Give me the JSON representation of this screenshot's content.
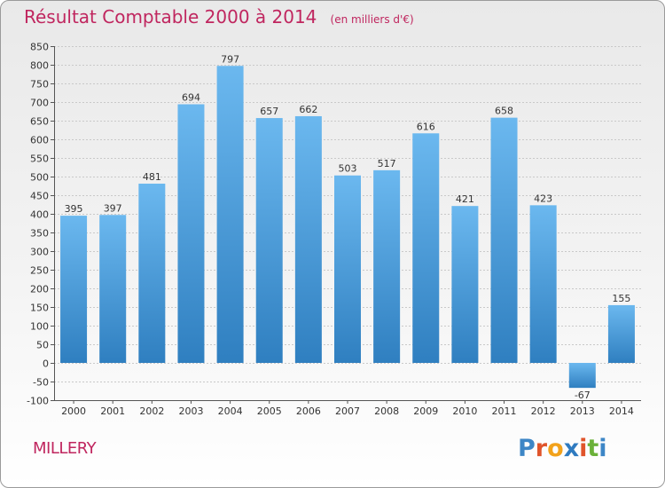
{
  "header": {
    "title": "Résultat Comptable 2000 à 2014",
    "subtitle": "(en milliers d'€)"
  },
  "footer": {
    "commune": "MILLERY",
    "logo_letters": [
      "P",
      "r",
      "o",
      "x",
      "i",
      "t",
      "i"
    ],
    "logo_colors": [
      "#3d86c6",
      "#e0542b",
      "#f2a21b",
      "#2f7bc0",
      "#e0542b",
      "#6bb139",
      "#3d86c6"
    ],
    "logo_text": "Proxiti"
  },
  "colors": {
    "bar_top": "#6bb8ef",
    "bar_bottom": "#2f7fc0",
    "grid": "#c9c9c9",
    "title": "#c0265f"
  },
  "chart_data": {
    "type": "bar",
    "categories": [
      "2000",
      "2001",
      "2002",
      "2003",
      "2004",
      "2005",
      "2006",
      "2007",
      "2008",
      "2009",
      "2010",
      "2011",
      "2012",
      "2013",
      "2014"
    ],
    "values": [
      395,
      397,
      481,
      694,
      797,
      657,
      662,
      503,
      517,
      616,
      421,
      658,
      423,
      -67,
      155
    ],
    "data_labels": [
      "395",
      "397",
      "481",
      "694",
      "797",
      "657",
      "662",
      "503",
      "517",
      "616",
      "421",
      "658",
      "423",
      "-67",
      "155"
    ],
    "yticks": [
      "-100",
      "-50",
      "0",
      "50",
      "100",
      "150",
      "200",
      "250",
      "300",
      "350",
      "400",
      "450",
      "500",
      "550",
      "600",
      "650",
      "700",
      "750",
      "800",
      "850"
    ],
    "ylim": [
      -100,
      850
    ],
    "grid": true,
    "title": "Résultat Comptable 2000 à 2014",
    "xlabel": "",
    "ylabel": ""
  }
}
